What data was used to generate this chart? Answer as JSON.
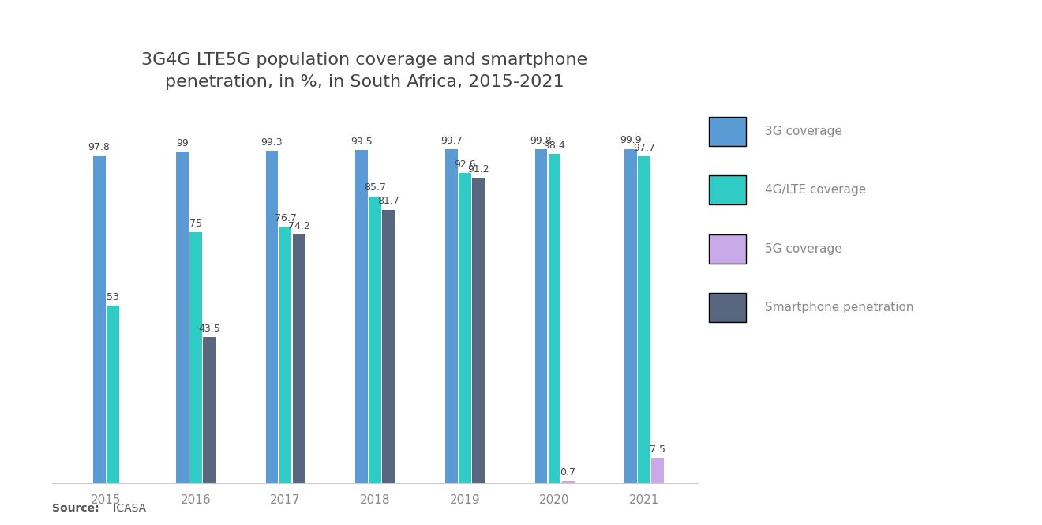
{
  "title": "3G4G LTE5G population coverage and smartphone\npenetration, in %, in South Africa, 2015-2021",
  "years": [
    2015,
    2016,
    2017,
    2018,
    2019,
    2020,
    2021
  ],
  "3g": [
    97.8,
    99,
    99.3,
    99.5,
    99.7,
    99.8,
    99.9
  ],
  "4g": [
    53,
    75,
    76.7,
    85.7,
    92.6,
    98.4,
    97.7
  ],
  "5g": [
    0,
    0,
    0,
    0,
    0,
    0.7,
    7.5
  ],
  "smartphone": [
    0,
    43.5,
    74.2,
    81.7,
    91.2,
    0,
    0
  ],
  "colors": {
    "3g": "#5b9bd5",
    "4g": "#2eccc4",
    "5g": "#c9a9e8",
    "smartphone": "#596680"
  },
  "legend_labels": [
    "3G coverage",
    "4G/LTE coverage",
    "5G coverage",
    "Smartphone penetration"
  ],
  "source_bold": "Source:",
  "source_rest": " ICASA",
  "background_color": "#ffffff",
  "title_fontsize": 16,
  "label_fontsize": 9,
  "axis_label_fontsize": 11
}
